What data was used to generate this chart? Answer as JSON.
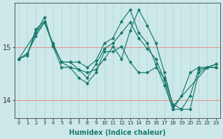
{
  "background_color": "#cce8e8",
  "grid_color_v": "#b8d8d8",
  "grid_color_h": "#e88080",
  "line_color": "#1a7a6e",
  "xlabel": "Humidex (Indice chaleur)",
  "xlim": [
    -0.5,
    23.5
  ],
  "ylim": [
    13.65,
    15.85
  ],
  "yticks": [
    14,
    15
  ],
  "xticks": [
    0,
    1,
    2,
    3,
    4,
    5,
    6,
    7,
    8,
    9,
    10,
    11,
    12,
    13,
    14,
    15,
    16,
    17,
    18,
    19,
    20,
    21,
    22,
    23
  ],
  "series": [
    {
      "x": [
        0,
        1,
        2,
        3,
        4,
        5,
        6,
        7,
        8,
        9,
        10,
        11,
        12,
        13,
        14,
        15,
        16,
        17,
        18,
        19,
        20,
        21,
        22,
        23
      ],
      "y": [
        14.78,
        14.85,
        15.35,
        15.5,
        15.05,
        14.72,
        14.72,
        14.72,
        14.62,
        14.75,
        15.08,
        15.18,
        15.5,
        15.72,
        15.28,
        15.08,
        14.68,
        14.28,
        13.82,
        14.08,
        14.52,
        14.62,
        14.62,
        14.68
      ]
    },
    {
      "x": [
        0,
        2,
        3,
        4,
        5,
        6,
        7,
        8,
        9,
        10,
        11,
        12,
        13,
        14,
        15,
        16,
        17,
        18,
        22,
        23
      ],
      "y": [
        14.78,
        15.28,
        15.48,
        15.05,
        14.72,
        14.62,
        14.58,
        14.52,
        14.58,
        14.78,
        15.02,
        14.78,
        15.32,
        15.72,
        15.42,
        15.08,
        14.52,
        13.88,
        14.62,
        14.68
      ]
    },
    {
      "x": [
        0,
        1,
        2,
        3,
        4,
        5,
        6,
        7,
        8,
        9,
        10,
        11,
        12,
        13,
        14,
        15,
        16,
        17,
        18,
        19,
        20,
        21,
        22,
        23
      ],
      "y": [
        14.78,
        14.88,
        15.28,
        15.58,
        15.02,
        14.62,
        14.62,
        14.42,
        14.32,
        14.52,
        14.92,
        14.92,
        15.02,
        14.72,
        14.52,
        14.52,
        14.62,
        14.42,
        13.92,
        13.82,
        13.82,
        14.52,
        14.62,
        14.62
      ]
    },
    {
      "x": [
        0,
        1,
        2,
        3,
        4,
        5,
        6,
        7,
        8,
        9,
        10,
        11,
        12,
        13,
        14,
        15,
        16,
        17,
        18,
        19,
        20,
        21,
        22,
        23
      ],
      "y": [
        14.78,
        14.88,
        15.22,
        15.48,
        15.08,
        14.72,
        14.72,
        14.58,
        14.42,
        14.68,
        14.98,
        15.08,
        15.28,
        15.48,
        15.18,
        14.98,
        14.78,
        14.38,
        13.82,
        13.82,
        14.08,
        14.58,
        14.62,
        14.62
      ]
    }
  ]
}
